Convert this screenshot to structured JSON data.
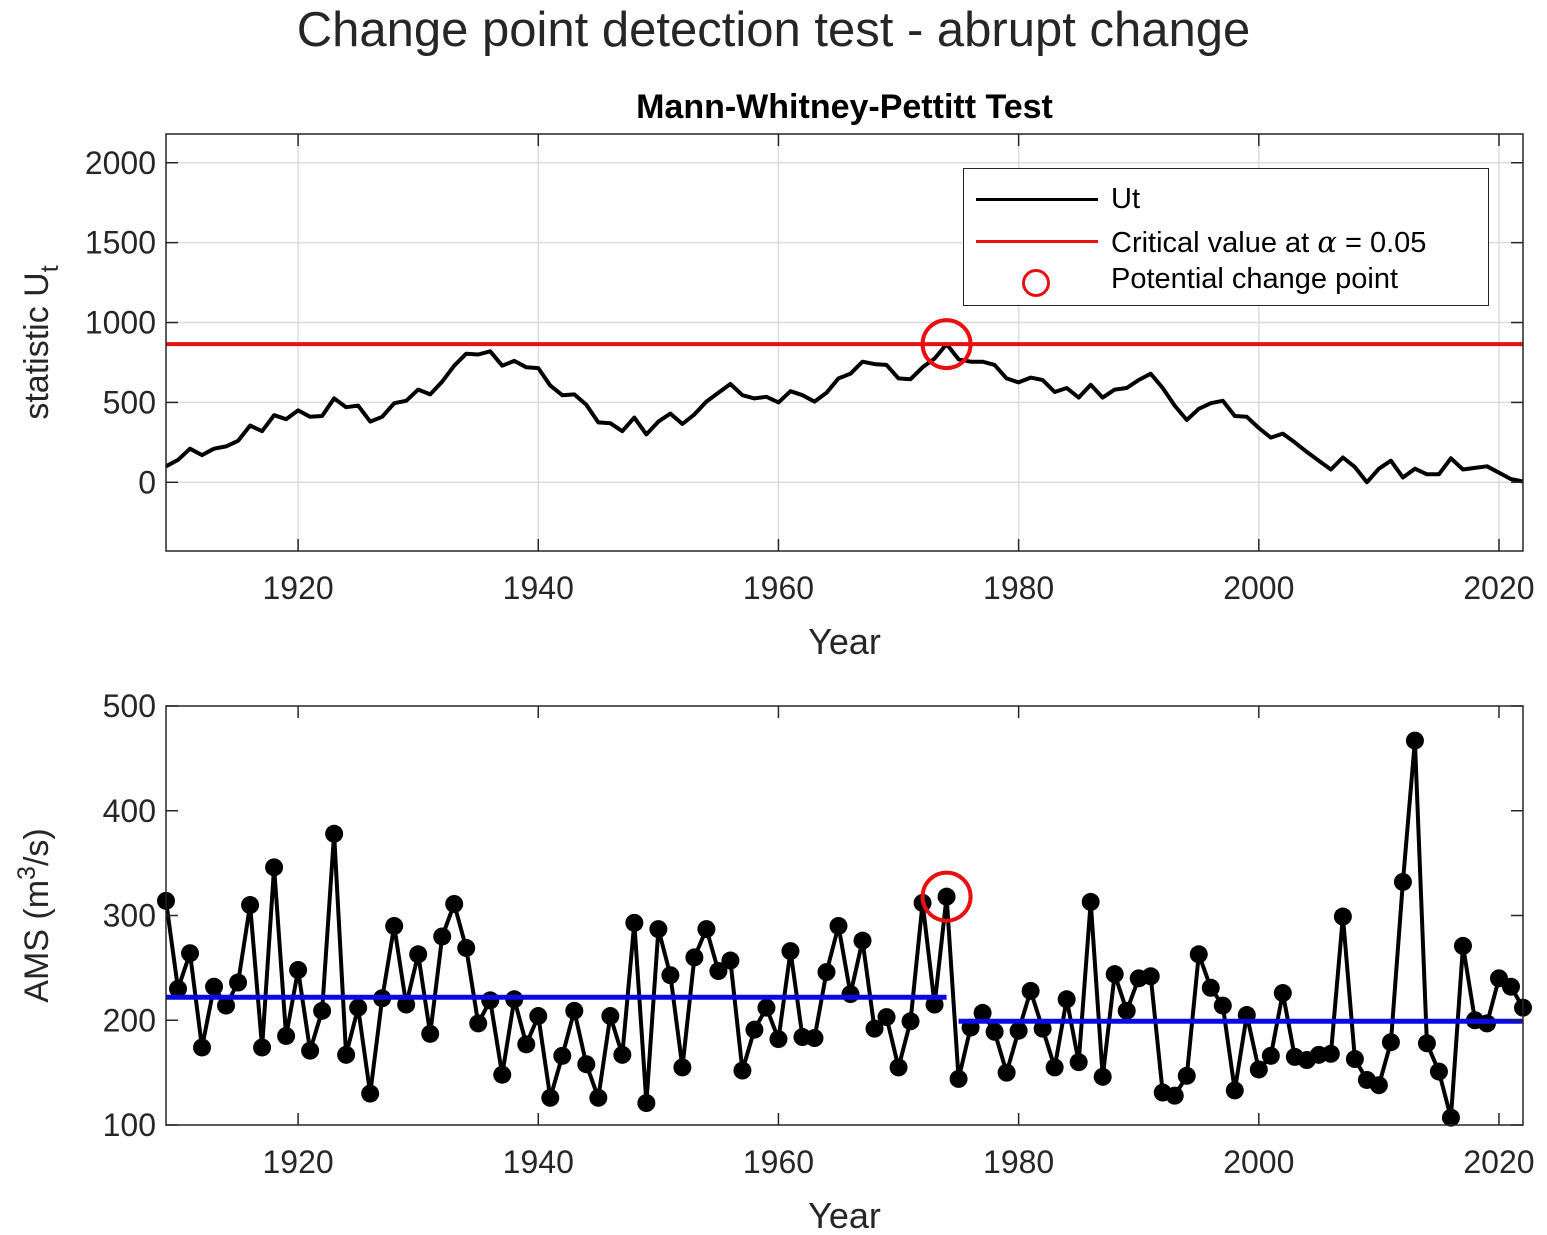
{
  "suptitle": "Change point detection test - abrupt change",
  "chart_data": [
    {
      "type": "line",
      "title": "Mann-Whitney-Pettitt Test",
      "xlabel": "Year",
      "ylabel_base": "statistic U",
      "ylabel_sub": "t",
      "xlim": [
        1909,
        2022
      ],
      "ylim": [
        -430,
        2180
      ],
      "xticks": [
        1920,
        1940,
        1960,
        1980,
        2000,
        2020
      ],
      "yticks": [
        0,
        500,
        1000,
        1500,
        2000
      ],
      "grid": true,
      "legend_position": "top-right",
      "series": [
        {
          "name": "Ut",
          "color": "#000000",
          "x": [
            1909,
            1910,
            1911,
            1912,
            1913,
            1914,
            1915,
            1916,
            1917,
            1918,
            1919,
            1920,
            1921,
            1922,
            1923,
            1924,
            1925,
            1926,
            1927,
            1928,
            1929,
            1930,
            1931,
            1932,
            1933,
            1934,
            1935,
            1936,
            1937,
            1938,
            1939,
            1940,
            1941,
            1942,
            1943,
            1944,
            1945,
            1946,
            1947,
            1948,
            1949,
            1950,
            1951,
            1952,
            1953,
            1954,
            1955,
            1956,
            1957,
            1958,
            1959,
            1960,
            1961,
            1962,
            1963,
            1964,
            1965,
            1966,
            1967,
            1968,
            1969,
            1970,
            1971,
            1972,
            1973,
            1974,
            1975,
            1976,
            1977,
            1978,
            1979,
            1980,
            1981,
            1982,
            1983,
            1984,
            1985,
            1986,
            1987,
            1988,
            1989,
            1990,
            1991,
            1992,
            1993,
            1994,
            1995,
            1996,
            1997,
            1998,
            1999,
            2000,
            2001,
            2002,
            2003,
            2004,
            2005,
            2006,
            2007,
            2008,
            2009,
            2010,
            2011,
            2012,
            2013,
            2014,
            2015,
            2016,
            2017,
            2018,
            2019,
            2020,
            2021,
            2022
          ],
          "y": [
            100,
            140,
            210,
            170,
            210,
            225,
            260,
            355,
            320,
            420,
            395,
            450,
            410,
            415,
            525,
            470,
            480,
            380,
            410,
            495,
            510,
            580,
            550,
            630,
            730,
            805,
            800,
            820,
            730,
            760,
            720,
            715,
            605,
            545,
            550,
            485,
            375,
            370,
            320,
            405,
            300,
            380,
            430,
            365,
            425,
            505,
            560,
            615,
            545,
            525,
            535,
            500,
            570,
            545,
            505,
            560,
            650,
            680,
            755,
            740,
            735,
            650,
            645,
            720,
            775,
            865,
            770,
            755,
            755,
            735,
            650,
            625,
            655,
            640,
            565,
            590,
            530,
            610,
            530,
            580,
            590,
            640,
            680,
            590,
            480,
            390,
            460,
            495,
            510,
            415,
            410,
            340,
            280,
            305,
            250,
            190,
            135,
            80,
            155,
            95,
            0,
            85,
            135,
            30,
            85,
            50,
            50,
            150,
            80,
            90,
            100,
            60,
            20,
            5
          ]
        },
        {
          "name": "Critical value at α = 0.05",
          "color": "#e81010",
          "constant": 865
        },
        {
          "name": "Potential change point",
          "color": "#e81010",
          "marker": "circle",
          "x": [
            1974
          ],
          "y": [
            865
          ]
        }
      ]
    },
    {
      "type": "line",
      "xlabel": "Year",
      "ylabel_pre": "AMS (m",
      "ylabel_sup": "3",
      "ylabel_post": "/s)",
      "xlim": [
        1909,
        2022
      ],
      "ylim": [
        100,
        500
      ],
      "xticks": [
        1920,
        1940,
        1960,
        1980,
        2000,
        2020
      ],
      "yticks": [
        100,
        200,
        300,
        400,
        500
      ],
      "grid": false,
      "series": [
        {
          "color": "#000000",
          "marker": "filled-circle",
          "x": [
            1909,
            1910,
            1911,
            1912,
            1913,
            1914,
            1915,
            1916,
            1917,
            1918,
            1919,
            1920,
            1921,
            1922,
            1923,
            1924,
            1925,
            1926,
            1927,
            1928,
            1929,
            1930,
            1931,
            1932,
            1933,
            1934,
            1935,
            1936,
            1937,
            1938,
            1939,
            1940,
            1941,
            1942,
            1943,
            1944,
            1945,
            1946,
            1947,
            1948,
            1949,
            1950,
            1951,
            1952,
            1953,
            1954,
            1955,
            1956,
            1957,
            1958,
            1959,
            1960,
            1961,
            1962,
            1963,
            1964,
            1965,
            1966,
            1967,
            1968,
            1969,
            1970,
            1971,
            1972,
            1973,
            1974,
            1975,
            1976,
            1977,
            1978,
            1979,
            1980,
            1981,
            1982,
            1983,
            1984,
            1985,
            1986,
            1987,
            1988,
            1989,
            1990,
            1991,
            1992,
            1993,
            1994,
            1995,
            1996,
            1997,
            1998,
            1999,
            2000,
            2001,
            2002,
            2003,
            2004,
            2005,
            2006,
            2007,
            2008,
            2009,
            2010,
            2011,
            2012,
            2013,
            2014,
            2015,
            2016,
            2017,
            2018,
            2019,
            2020,
            2021,
            2022
          ],
          "y": [
            314,
            230,
            264,
            174,
            232,
            214,
            236,
            310,
            174,
            346,
            185,
            248,
            171,
            209,
            378,
            167,
            212,
            130,
            221,
            290,
            215,
            263,
            187,
            280,
            311,
            269,
            197,
            219,
            148,
            220,
            177,
            204,
            126,
            166,
            209,
            158,
            126,
            204,
            167,
            293,
            121,
            287,
            243,
            155,
            260,
            287,
            247,
            257,
            152,
            191,
            212,
            182,
            266,
            184,
            183,
            246,
            290,
            225,
            276,
            192,
            203,
            155,
            199,
            312,
            215,
            318,
            144,
            193,
            207,
            189,
            150,
            190,
            228,
            192,
            155,
            220,
            160,
            313,
            146,
            244,
            209,
            240,
            242,
            131,
            128,
            147,
            263,
            231,
            214,
            133,
            205,
            153,
            166,
            226,
            165,
            162,
            167,
            168,
            299,
            163,
            143,
            138,
            179,
            332,
            467,
            178,
            151,
            107,
            271,
            200,
            197,
            240,
            232,
            212
          ]
        },
        {
          "color": "#0a0ae6",
          "segments": [
            {
              "x": [
                1909,
                1974
              ],
              "y": [
                222,
                222
              ]
            },
            {
              "x": [
                1975,
                2022
              ],
              "y": [
                199,
                199
              ]
            }
          ]
        },
        {
          "color": "#e81010",
          "marker": "circle",
          "x": [
            1974
          ],
          "y": [
            318
          ]
        }
      ]
    }
  ]
}
